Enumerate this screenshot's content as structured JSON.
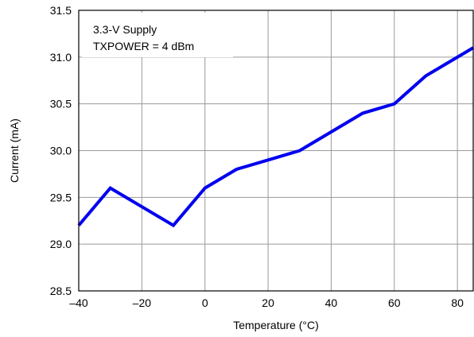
{
  "chart_data": {
    "type": "line",
    "title": "",
    "xlabel": "Temperature (°C)",
    "ylabel": "Current (mA)",
    "xlim": [
      -40,
      85
    ],
    "ylim": [
      28.5,
      31.5
    ],
    "xticks": [
      -40,
      -20,
      0,
      20,
      40,
      60,
      80
    ],
    "xtick_labels": [
      "–40",
      "–20",
      "0",
      "20",
      "40",
      "60",
      "80"
    ],
    "yticks": [
      28.5,
      29.0,
      29.5,
      30.0,
      30.5,
      31.0,
      31.5
    ],
    "ytick_labels": [
      "28.5",
      "29.0",
      "29.5",
      "30.0",
      "30.5",
      "31.0",
      "31.5"
    ],
    "grid": true,
    "legend": "none",
    "line_color": "#0000ee",
    "annotation": [
      "3.3-V Supply",
      "TXPOWER = 4 dBm"
    ],
    "series": [
      {
        "x": [
          -40,
          -30,
          -10,
          0,
          10,
          20,
          30,
          40,
          50,
          60,
          70,
          85
        ],
        "y": [
          29.2,
          29.6,
          29.2,
          29.6,
          29.8,
          29.9,
          30.0,
          30.2,
          30.4,
          30.5,
          30.8,
          31.1
        ]
      }
    ]
  }
}
